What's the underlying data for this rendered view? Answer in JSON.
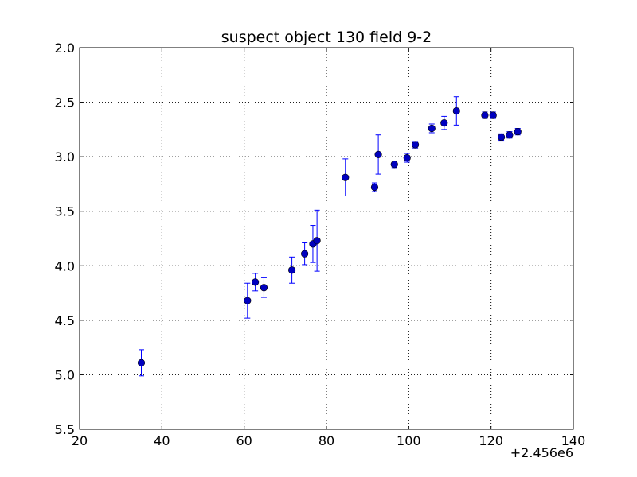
{
  "chart_data": {
    "type": "scatter",
    "title": "suspect object 130 field 9-2",
    "xlabel": "",
    "ylabel": "",
    "x_offset_label": "+2.456e6",
    "x_offset": 2456000,
    "xlim": [
      20,
      140
    ],
    "ylim": [
      5.5,
      2.0
    ],
    "y_inverted": true,
    "grid": true,
    "x_ticks": [
      20,
      40,
      60,
      80,
      100,
      120,
      140
    ],
    "x_tick_labels": [
      "20",
      "40",
      "60",
      "80",
      "100",
      "120",
      "140"
    ],
    "y_ticks": [
      2.0,
      2.5,
      3.0,
      3.5,
      4.0,
      4.5,
      5.0,
      5.5
    ],
    "y_tick_labels": [
      "2.0",
      "2.5",
      "3.0",
      "3.5",
      "4.0",
      "4.5",
      "5.0",
      "5.5"
    ],
    "marker_color": "#0000bf",
    "errorbar_color": "#0000ff",
    "series": [
      {
        "points": [
          {
            "x": 35.0,
            "y": 4.89,
            "err": 0.12
          },
          {
            "x": 60.8,
            "y": 4.32,
            "err": 0.16
          },
          {
            "x": 62.7,
            "y": 4.15,
            "err": 0.08
          },
          {
            "x": 64.8,
            "y": 4.2,
            "err": 0.09
          },
          {
            "x": 71.6,
            "y": 4.04,
            "err": 0.12
          },
          {
            "x": 74.7,
            "y": 3.89,
            "err": 0.1
          },
          {
            "x": 76.7,
            "y": 3.8,
            "err": 0.17
          },
          {
            "x": 77.7,
            "y": 3.77,
            "err": 0.28
          },
          {
            "x": 84.6,
            "y": 3.19,
            "err": 0.17
          },
          {
            "x": 91.7,
            "y": 3.28,
            "err": 0.04
          },
          {
            "x": 92.6,
            "y": 2.98,
            "err": 0.18
          },
          {
            "x": 96.5,
            "y": 3.07,
            "err": 0.03
          },
          {
            "x": 99.6,
            "y": 3.01,
            "err": 0.04
          },
          {
            "x": 101.6,
            "y": 2.89,
            "err": 0.03
          },
          {
            "x": 105.6,
            "y": 2.74,
            "err": 0.04
          },
          {
            "x": 108.6,
            "y": 2.69,
            "err": 0.06
          },
          {
            "x": 111.6,
            "y": 2.58,
            "err": 0.13
          },
          {
            "x": 118.5,
            "y": 2.62,
            "err": 0.03
          },
          {
            "x": 120.5,
            "y": 2.62,
            "err": 0.03
          },
          {
            "x": 122.5,
            "y": 2.82,
            "err": 0.03
          },
          {
            "x": 124.5,
            "y": 2.8,
            "err": 0.03
          },
          {
            "x": 126.5,
            "y": 2.77,
            "err": 0.03
          }
        ]
      }
    ]
  }
}
